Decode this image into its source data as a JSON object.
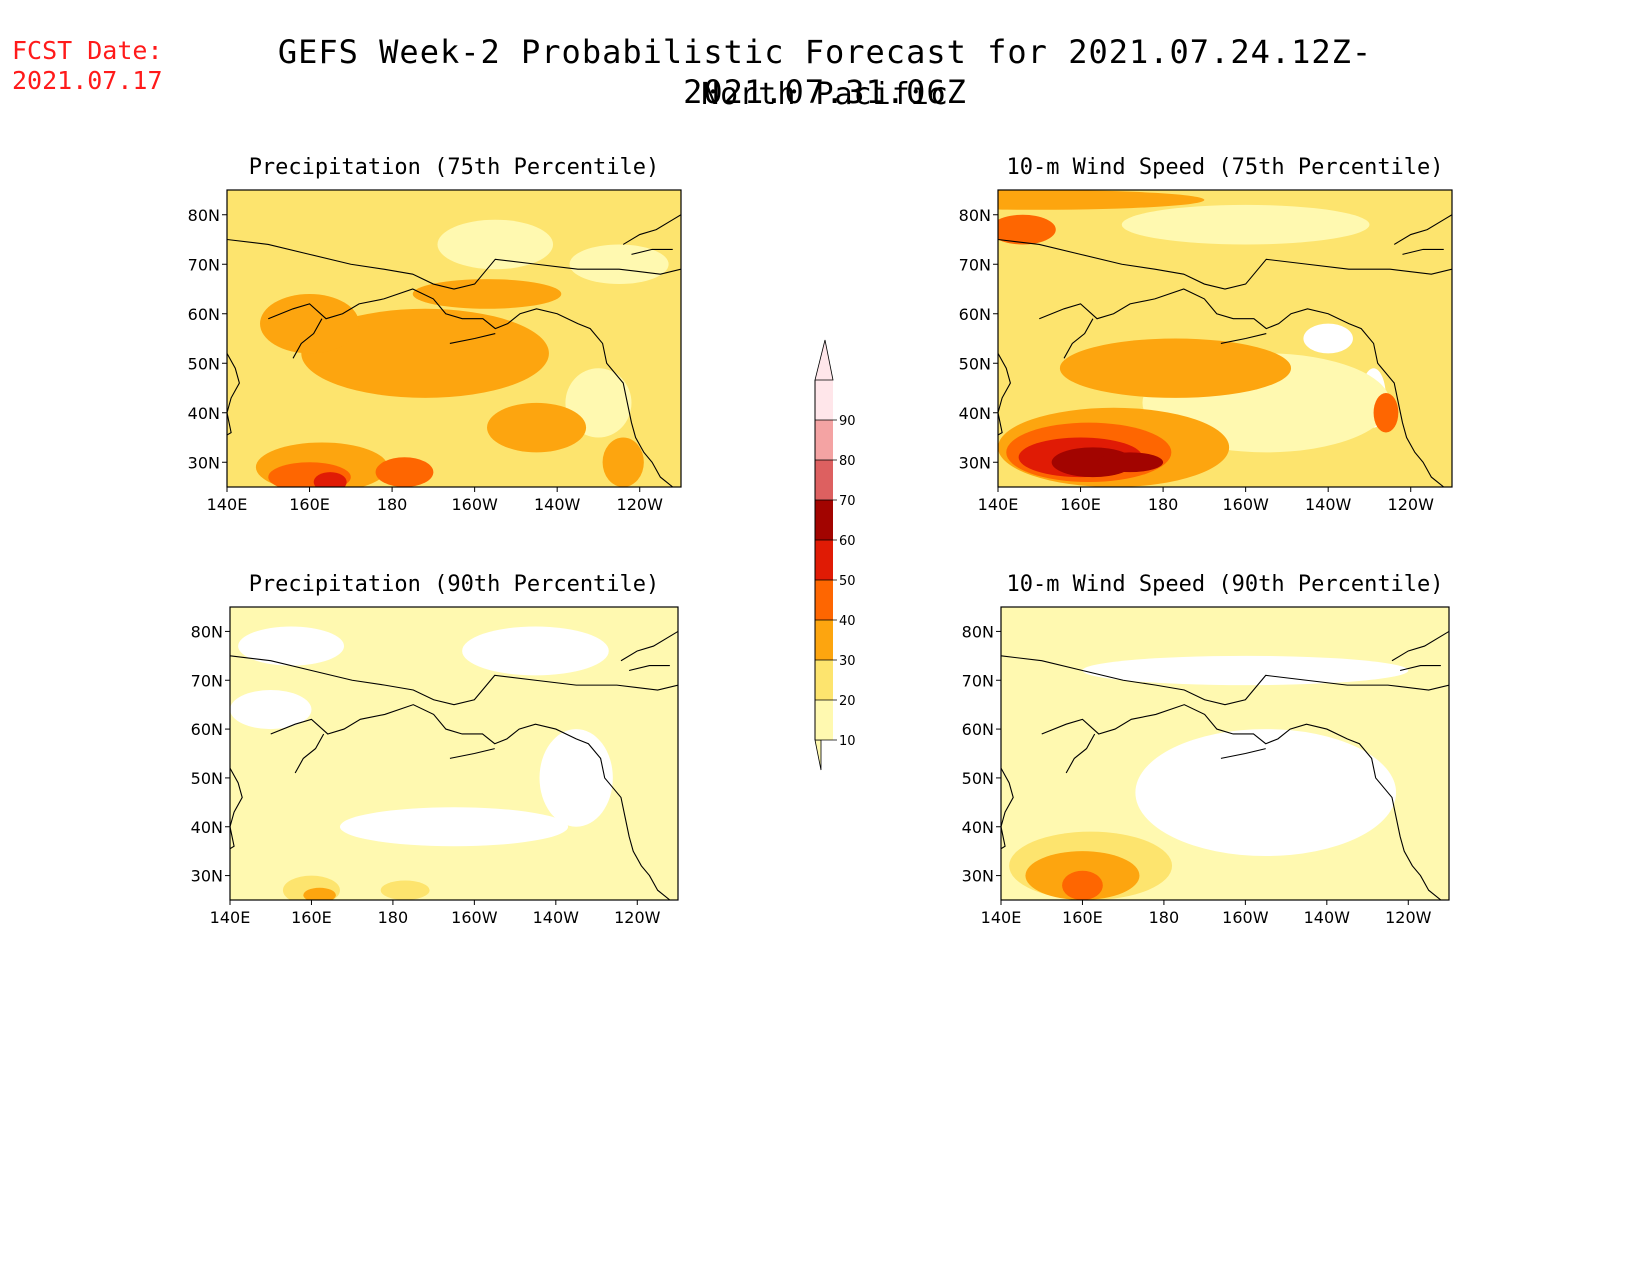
{
  "header": {
    "fcst_label": "FCST Date:",
    "fcst_date": "2021.07.17",
    "title": "GEFS Week-2 Probabilistic Forecast for 2021.07.24.12Z-2021.07.31.06Z",
    "subtitle": "North Pacific"
  },
  "palette": {
    "10": "#fff9b0",
    "20": "#fde46e",
    "30": "#fda50f",
    "40": "#fe6601",
    "50": "#e01b05",
    "60": "#a20400",
    "70": "#dd6060",
    "80": "#f4a3a3",
    "90": "#ffe6ea",
    "land_clear": "#ffffff",
    "coast": "#000000"
  },
  "colorbar": {
    "levels": [
      "10",
      "20",
      "30",
      "40",
      "50",
      "60",
      "70",
      "80",
      "90"
    ]
  },
  "axes": {
    "lon_ticks": [
      "140E",
      "160E",
      "180",
      "160W",
      "140W",
      "120W"
    ],
    "lat_ticks": [
      "80N",
      "70N",
      "60N",
      "50N",
      "40N",
      "30N"
    ],
    "lon_range": [
      140,
      250
    ],
    "lat_range": [
      25,
      85
    ]
  },
  "panels": [
    {
      "id": "precip75",
      "title": "Precipitation (75th Percentile)",
      "background_level": "20",
      "fields": [
        {
          "level": "10",
          "lon": 205,
          "lat": 74,
          "rx": 14,
          "ry": 5
        },
        {
          "level": "10",
          "lon": 235,
          "lat": 70,
          "rx": 12,
          "ry": 4
        },
        {
          "level": "10",
          "lon": 230,
          "lat": 42,
          "rx": 8,
          "ry": 7
        },
        {
          "level": "30",
          "lon": 188,
          "lat": 52,
          "rx": 30,
          "ry": 9
        },
        {
          "level": "30",
          "lon": 160,
          "lat": 58,
          "rx": 12,
          "ry": 6
        },
        {
          "level": "30",
          "lon": 203,
          "lat": 64,
          "rx": 18,
          "ry": 3
        },
        {
          "level": "30",
          "lon": 163,
          "lat": 29,
          "rx": 16,
          "ry": 5
        },
        {
          "level": "30",
          "lon": 215,
          "lat": 37,
          "rx": 12,
          "ry": 5
        },
        {
          "level": "30",
          "lon": 236,
          "lat": 30,
          "rx": 5,
          "ry": 5
        },
        {
          "level": "40",
          "lon": 160,
          "lat": 27,
          "rx": 10,
          "ry": 3
        },
        {
          "level": "40",
          "lon": 183,
          "lat": 28,
          "rx": 7,
          "ry": 3
        },
        {
          "level": "50",
          "lon": 165,
          "lat": 26,
          "rx": 4,
          "ry": 2
        }
      ]
    },
    {
      "id": "wind75",
      "title": "10-m Wind Speed (75th Percentile)",
      "background_level": "20",
      "fields": [
        {
          "level": "land_clear",
          "lon": 220,
          "lat": 55,
          "rx": 6,
          "ry": 3
        },
        {
          "level": "land_clear",
          "lon": 231,
          "lat": 43,
          "rx": 3,
          "ry": 6
        },
        {
          "level": "10",
          "lon": 205,
          "lat": 42,
          "rx": 30,
          "ry": 10
        },
        {
          "level": "10",
          "lon": 200,
          "lat": 78,
          "rx": 30,
          "ry": 4
        },
        {
          "level": "30",
          "lon": 183,
          "lat": 49,
          "rx": 28,
          "ry": 6
        },
        {
          "level": "30",
          "lon": 168,
          "lat": 33,
          "rx": 28,
          "ry": 8
        },
        {
          "level": "30",
          "lon": 150,
          "lat": 83,
          "rx": 40,
          "ry": 2
        },
        {
          "level": "40",
          "lon": 162,
          "lat": 32,
          "rx": 20,
          "ry": 6
        },
        {
          "level": "40",
          "lon": 146,
          "lat": 77,
          "rx": 8,
          "ry": 3
        },
        {
          "level": "40",
          "lon": 234,
          "lat": 40,
          "rx": 3,
          "ry": 4
        },
        {
          "level": "50",
          "lon": 160,
          "lat": 31,
          "rx": 15,
          "ry": 4
        },
        {
          "level": "60",
          "lon": 163,
          "lat": 30,
          "rx": 10,
          "ry": 3
        },
        {
          "level": "60",
          "lon": 172,
          "lat": 30,
          "rx": 8,
          "ry": 2
        }
      ]
    },
    {
      "id": "precip90",
      "title": "Precipitation (90th Percentile)",
      "background_level": "10",
      "fields": [
        {
          "level": "land_clear",
          "lon": 155,
          "lat": 77,
          "rx": 13,
          "ry": 4
        },
        {
          "level": "land_clear",
          "lon": 215,
          "lat": 76,
          "rx": 18,
          "ry": 5
        },
        {
          "level": "land_clear",
          "lon": 150,
          "lat": 64,
          "rx": 10,
          "ry": 4
        },
        {
          "level": "land_clear",
          "lon": 195,
          "lat": 40,
          "rx": 28,
          "ry": 4
        },
        {
          "level": "land_clear",
          "lon": 225,
          "lat": 50,
          "rx": 9,
          "ry": 10
        },
        {
          "level": "20",
          "lon": 160,
          "lat": 27,
          "rx": 7,
          "ry": 3
        },
        {
          "level": "20",
          "lon": 183,
          "lat": 27,
          "rx": 6,
          "ry": 2
        },
        {
          "level": "30",
          "lon": 162,
          "lat": 26,
          "rx": 4,
          "ry": 1.5
        }
      ]
    },
    {
      "id": "wind90",
      "title": "10-m Wind Speed (90th Percentile)",
      "background_level": "10",
      "fields": [
        {
          "level": "land_clear",
          "lon": 205,
          "lat": 47,
          "rx": 32,
          "ry": 13
        },
        {
          "level": "land_clear",
          "lon": 200,
          "lat": 72,
          "rx": 40,
          "ry": 3
        },
        {
          "level": "20",
          "lon": 162,
          "lat": 32,
          "rx": 20,
          "ry": 7
        },
        {
          "level": "30",
          "lon": 160,
          "lat": 30,
          "rx": 14,
          "ry": 5
        },
        {
          "level": "40",
          "lon": 160,
          "lat": 28,
          "rx": 5,
          "ry": 3
        }
      ]
    }
  ]
}
